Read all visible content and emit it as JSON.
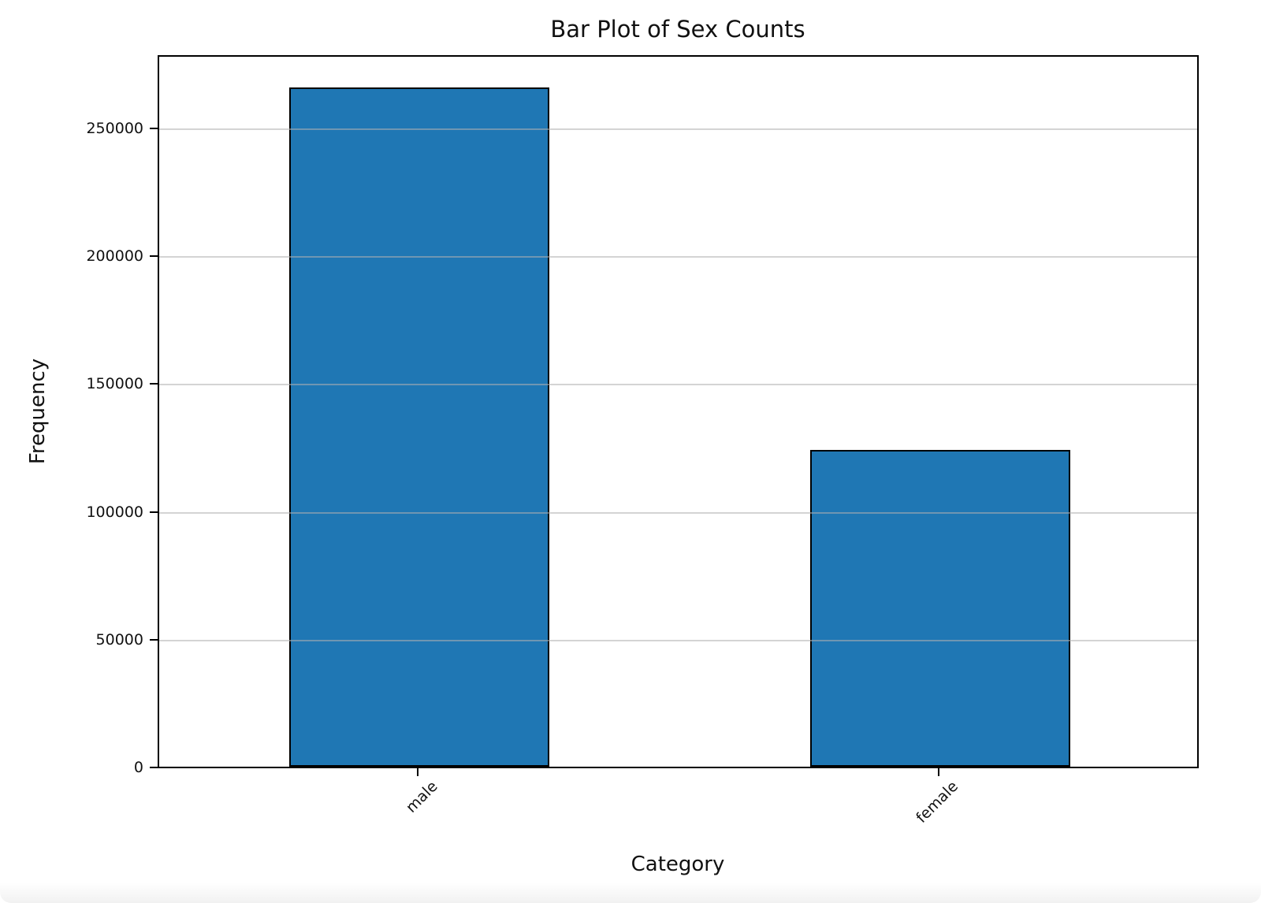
{
  "chart_data": {
    "type": "bar",
    "title": "Bar Plot of Sex Counts",
    "xlabel": "Category",
    "ylabel": "Frequency",
    "categories": [
      "male",
      "female"
    ],
    "values": [
      265700,
      123900
    ],
    "ylim": [
      0,
      279000
    ],
    "yticks": [
      0,
      50000,
      100000,
      150000,
      200000,
      250000
    ],
    "ytick_labels": [
      "0",
      "50000",
      "100000",
      "150000",
      "200000",
      "250000"
    ],
    "xtick_rotation_deg": 45,
    "bar_color": "#1f77b4",
    "bar_edge_color": "#000000",
    "grid": true,
    "grid_axis": "y",
    "legend": "none"
  }
}
